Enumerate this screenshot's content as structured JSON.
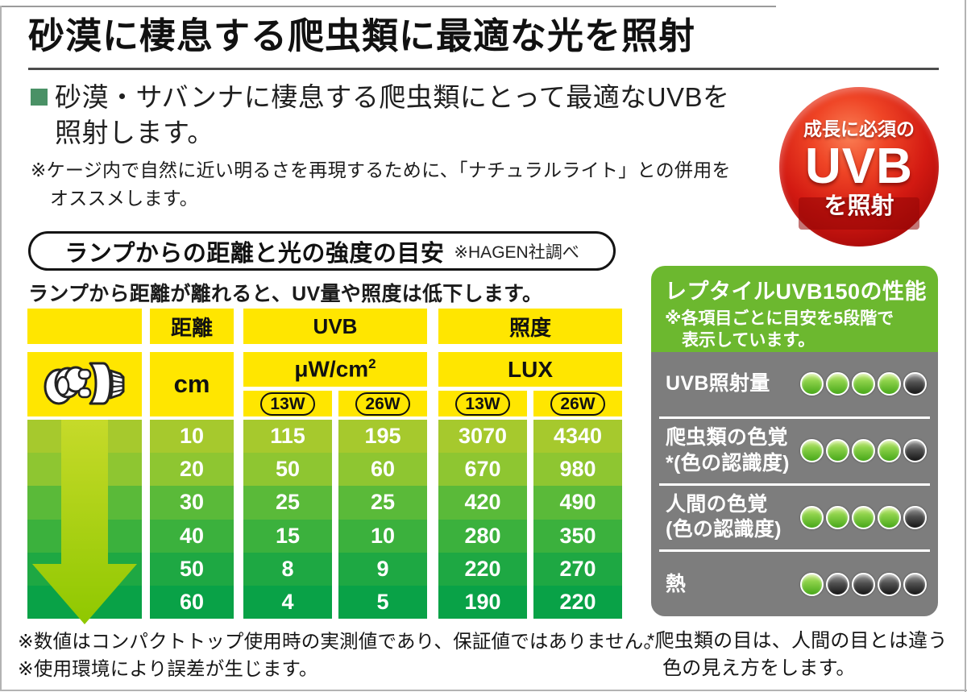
{
  "header": {
    "title": "砂漠に棲息する爬虫類に最適な光を照射",
    "subtitle_line1": "砂漠・サバンナに棲息する爬虫類にとって最適なUVBを",
    "subtitle_line2": "照射します。",
    "note_line1": "※ケージ内で自然に近い明るさを再現するために、「ナチュラルライト」との併用を",
    "note_line2": "オススメします。"
  },
  "badge": {
    "line1": "成長に必須の",
    "line2": "UVB",
    "line3": "を照射"
  },
  "section": {
    "pill_title": "ランプからの距離と光の強度の目安",
    "pill_note": "※HAGEN社調べ",
    "lead": "ランプから距離が離れると、UV量や照度は低下します。"
  },
  "table": {
    "headers": {
      "distance": "距離",
      "uvb": "UVB",
      "illuminance": "照度"
    },
    "units": {
      "distance": "cm",
      "uvb_base": "μW/cm",
      "uvb_sup": "2",
      "illuminance": "LUX"
    },
    "watt_labels": {
      "uvb_13": "13W",
      "uvb_26": "26W",
      "lux_13": "13W",
      "lux_26": "26W"
    },
    "rows": [
      {
        "cm": "10",
        "uvb13": "115",
        "uvb26": "195",
        "lux13": "3070",
        "lux26": "4340"
      },
      {
        "cm": "20",
        "uvb13": "50",
        "uvb26": "60",
        "lux13": "670",
        "lux26": "980"
      },
      {
        "cm": "30",
        "uvb13": "25",
        "uvb26": "25",
        "lux13": "420",
        "lux26": "490"
      },
      {
        "cm": "40",
        "uvb13": "15",
        "uvb26": "10",
        "lux13": "280",
        "lux26": "350"
      },
      {
        "cm": "50",
        "uvb13": "8",
        "uvb26": "9",
        "lux13": "220",
        "lux26": "270"
      },
      {
        "cm": "60",
        "uvb13": "4",
        "uvb26": "5",
        "lux13": "190",
        "lux26": "220"
      }
    ]
  },
  "performance": {
    "title": "レプタイルUVB150の性能",
    "subtitle_line1": "※各項目ごとに目安を5段階で",
    "subtitle_line2": "表示しています。",
    "max": 5,
    "items": [
      {
        "line1": "UVB照射量",
        "line2": "",
        "score": 4
      },
      {
        "line1": "爬虫類の色覚",
        "line2": "*(色の認識度)",
        "score": 4
      },
      {
        "line1": "人間の色覚",
        "line2": "(色の認識度)",
        "score": 4
      },
      {
        "line1": "熱",
        "line2": "",
        "score": 1
      }
    ]
  },
  "footnotes": {
    "left_line1": "※数値はコンパクトトップ使用時の実測値であり、保証値ではありません。",
    "left_line2": "※使用環境により誤差が生じます。",
    "right_line1": "*爬虫類の目は、人間の目とは違う",
    "right_line2": "色の見え方をします。"
  },
  "colors": {
    "table_header_yellow": "#ffe600",
    "row_greens": [
      "#a6c92d",
      "#8ec631",
      "#5aba39",
      "#3bb13d",
      "#1ea843",
      "#09a247"
    ],
    "arrow_green_top": "#c6da2a",
    "arrow_green_bottom": "#8fc800",
    "panel_header_green": "#6cb82f",
    "panel_body_gray": "#7d7d7d",
    "dot_on_green": "#5cb822",
    "dot_off_dark": "#2a2a2a",
    "badge_red": "#d31a12",
    "bullet_green": "#4a9166"
  }
}
